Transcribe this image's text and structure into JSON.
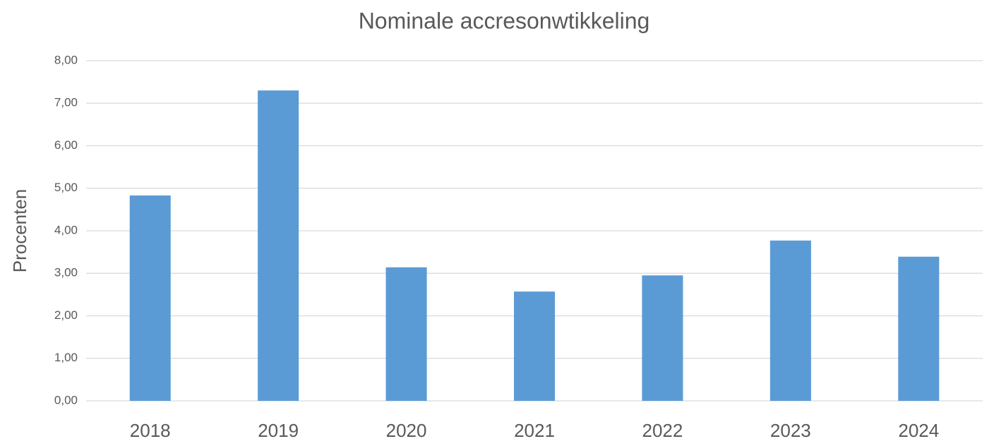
{
  "chart_data": {
    "type": "bar",
    "title": "Nominale accresonwtikkeling",
    "y_label": "Procenten",
    "categories": [
      "2018",
      "2019",
      "2020",
      "2021",
      "2022",
      "2023",
      "2024"
    ],
    "values": [
      4.83,
      7.3,
      3.14,
      2.57,
      2.95,
      3.77,
      3.39
    ],
    "color": "#5b9bd5",
    "ylim": [
      0,
      8
    ],
    "yticks": [
      {
        "value": 0,
        "label": "0,00"
      },
      {
        "value": 1,
        "label": "1,00"
      },
      {
        "value": 2,
        "label": "2,00"
      },
      {
        "value": 3,
        "label": "3,00"
      },
      {
        "value": 4,
        "label": "4,00"
      },
      {
        "value": 5,
        "label": "5,00"
      },
      {
        "value": 6,
        "label": "6,00"
      },
      {
        "value": 7,
        "label": "7,00"
      },
      {
        "value": 8,
        "label": "8,00"
      }
    ],
    "grid": true
  }
}
